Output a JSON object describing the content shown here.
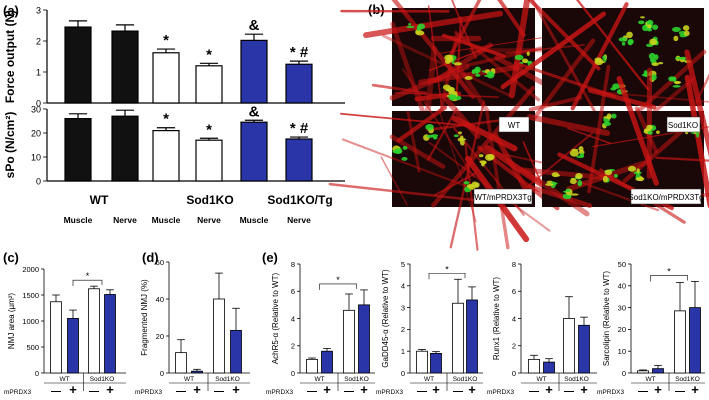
{
  "colors": {
    "black": "#111111",
    "white": "#ffffff",
    "blue": "#2a35a8",
    "micro_bg": "#1a0707",
    "micro_red": "#c81414",
    "micro_green": "#2ed12e",
    "micro_yellow": "#c8d21e"
  },
  "labels": {
    "panel_a": "(a)",
    "panel_b": "(b)",
    "panel_c": "(c)",
    "panel_d": "(d)",
    "panel_e": "(e)",
    "mprdx3": "mPRDX3",
    "minus": "—",
    "plus": "+",
    "wt": "WT",
    "sod1ko": "Sod1KO",
    "sod1ko_tg": "Sod1KO/Tg",
    "muscle": "Muscle",
    "nerve": "Nerve"
  },
  "images": {
    "wt": "WT",
    "sod1ko": "Sod1KO",
    "wt_tg": "WT/mPRDX3Tg",
    "sod1ko_tg": "Sod1KO/mPRDX3Tg"
  },
  "chart_data": [
    {
      "id": "a_force",
      "type": "bar",
      "ylabel": "Force output (N)",
      "categories": [
        "WT Muscle",
        "WT Nerve",
        "Sod1KO Muscle",
        "Sod1KO Nerve",
        "Sod1KO/Tg Muscle",
        "Sod1KO/Tg Nerve"
      ],
      "values": [
        2.45,
        2.32,
        1.62,
        1.2,
        2.02,
        1.25
      ],
      "errors": [
        0.2,
        0.2,
        0.12,
        0.08,
        0.2,
        0.1
      ],
      "colors": [
        "#111111",
        "#111111",
        "#ffffff",
        "#ffffff",
        "#2a35a8",
        "#2a35a8"
      ],
      "markers": [
        "",
        "",
        "*",
        "*",
        "&",
        "* #"
      ],
      "ylim": [
        0,
        3
      ],
      "yticks": [
        0,
        1,
        2,
        3
      ]
    },
    {
      "id": "a_spo",
      "type": "bar",
      "ylabel": "sPo (N/cm²)",
      "categories": [
        "WT Muscle",
        "WT Nerve",
        "Sod1KO Muscle",
        "Sod1KO Nerve",
        "Sod1KO/Tg Muscle",
        "Sod1KO/Tg Nerve"
      ],
      "values": [
        26,
        27,
        21,
        17,
        24.5,
        17.5
      ],
      "errors": [
        2,
        2.5,
        1.2,
        0.8,
        0.8,
        0.8
      ],
      "colors": [
        "#111111",
        "#111111",
        "#ffffff",
        "#ffffff",
        "#2a35a8",
        "#2a35a8"
      ],
      "markers": [
        "",
        "",
        "*",
        "*",
        "&",
        "* #"
      ],
      "ylim": [
        0,
        30
      ],
      "yticks": [
        0,
        10,
        20,
        30
      ]
    },
    {
      "id": "c_nmj_area",
      "type": "bar",
      "ylabel": "NMJ area (µm²)",
      "categories": [
        "WT —",
        "WT +",
        "Sod1KO —",
        "Sod1KO +"
      ],
      "values": [
        1370,
        1050,
        1620,
        1510
      ],
      "errors": [
        130,
        160,
        50,
        90
      ],
      "colors": [
        "#ffffff",
        "#2a35a8",
        "#ffffff",
        "#2a35a8"
      ],
      "ylim": [
        0,
        2000
      ],
      "yticks": [
        0,
        500,
        1000,
        1500,
        2000
      ],
      "significance": "*"
    },
    {
      "id": "d_fragmented",
      "type": "bar",
      "ylabel": "Fragmented NMJ (%)",
      "categories": [
        "WT —",
        "WT +",
        "Sod1KO —",
        "Sod1KO +"
      ],
      "values": [
        11,
        1,
        40,
        23
      ],
      "errors": [
        7,
        1,
        14,
        12
      ],
      "colors": [
        "#ffffff",
        "#2a35a8",
        "#ffffff",
        "#2a35a8"
      ],
      "ylim": [
        0,
        60
      ],
      "yticks": [
        0,
        20,
        40,
        60
      ]
    },
    {
      "id": "e_achr",
      "type": "bar",
      "ylabel": "AchR5-α (Relative to WT)",
      "categories": [
        "WT —",
        "WT +",
        "Sod1KO —",
        "Sod1KO +"
      ],
      "values": [
        1,
        1.6,
        4.6,
        5
      ],
      "errors": [
        0.1,
        0.2,
        1.2,
        1.1
      ],
      "colors": [
        "#ffffff",
        "#2a35a8",
        "#ffffff",
        "#2a35a8"
      ],
      "ylim": [
        0,
        8
      ],
      "yticks": [
        0,
        2,
        4,
        6,
        8
      ],
      "significance": "*"
    },
    {
      "id": "e_gadd45",
      "type": "bar",
      "ylabel": "GaDD45-α (Relative to WT)",
      "categories": [
        "WT —",
        "WT +",
        "Sod1KO —",
        "Sod1KO +"
      ],
      "values": [
        1,
        0.9,
        3.2,
        3.35
      ],
      "errors": [
        0.08,
        0.08,
        1.1,
        0.6
      ],
      "colors": [
        "#ffffff",
        "#2a35a8",
        "#ffffff",
        "#2a35a8"
      ],
      "ylim": [
        0,
        5
      ],
      "yticks": [
        0,
        1,
        2,
        3,
        4,
        5
      ],
      "significance": "*"
    },
    {
      "id": "e_runx1",
      "type": "bar",
      "ylabel": "Runx1 (Relative to WT)",
      "categories": [
        "WT —",
        "WT +",
        "Sod1KO —",
        "Sod1KO +"
      ],
      "values": [
        1,
        0.8,
        4,
        3.5
      ],
      "errors": [
        0.3,
        0.25,
        1.6,
        0.6
      ],
      "colors": [
        "#ffffff",
        "#2a35a8",
        "#ffffff",
        "#2a35a8"
      ],
      "ylim": [
        0,
        8
      ],
      "yticks": [
        0,
        2,
        4,
        6,
        8
      ]
    },
    {
      "id": "e_sarcolipin",
      "type": "bar",
      "ylabel": "Sarcolipin (Relative to WT)",
      "categories": [
        "WT —",
        "WT +",
        "Sod1KO —",
        "Sod1KO +"
      ],
      "values": [
        1,
        2,
        28.5,
        30
      ],
      "errors": [
        0.4,
        1.5,
        13,
        12
      ],
      "colors": [
        "#ffffff",
        "#2a35a8",
        "#ffffff",
        "#2a35a8"
      ],
      "ylim": [
        0,
        50
      ],
      "yticks": [
        0,
        10,
        20,
        30,
        40,
        50
      ],
      "significance": "*"
    }
  ]
}
